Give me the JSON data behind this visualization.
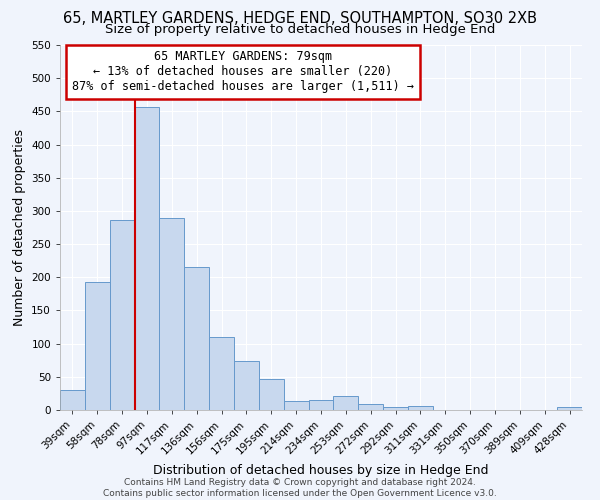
{
  "title": "65, MARTLEY GARDENS, HEDGE END, SOUTHAMPTON, SO30 2XB",
  "subtitle": "Size of property relative to detached houses in Hedge End",
  "xlabel": "Distribution of detached houses by size in Hedge End",
  "ylabel": "Number of detached properties",
  "categories": [
    "39sqm",
    "58sqm",
    "78sqm",
    "97sqm",
    "117sqm",
    "136sqm",
    "156sqm",
    "175sqm",
    "195sqm",
    "214sqm",
    "234sqm",
    "253sqm",
    "272sqm",
    "292sqm",
    "311sqm",
    "331sqm",
    "350sqm",
    "370sqm",
    "389sqm",
    "409sqm",
    "428sqm"
  ],
  "values": [
    30,
    193,
    287,
    457,
    290,
    215,
    110,
    74,
    46,
    14,
    15,
    21,
    9,
    5,
    6,
    0,
    0,
    0,
    0,
    0,
    5
  ],
  "bar_color": "#c8d8ee",
  "bar_edge_color": "#6699cc",
  "vline_x_index": 2,
  "vline_color": "#cc0000",
  "annotation_text": "65 MARTLEY GARDENS: 79sqm\n← 13% of detached houses are smaller (220)\n87% of semi-detached houses are larger (1,511) →",
  "annotation_box_color": "#ffffff",
  "annotation_box_edge_color": "#cc0000",
  "ylim": [
    0,
    550
  ],
  "yticks": [
    0,
    50,
    100,
    150,
    200,
    250,
    300,
    350,
    400,
    450,
    500,
    550
  ],
  "footer": "Contains HM Land Registry data © Crown copyright and database right 2024.\nContains public sector information licensed under the Open Government Licence v3.0.",
  "bg_color": "#f0f4fc",
  "grid_color": "#ffffff",
  "title_fontsize": 10.5,
  "subtitle_fontsize": 9.5,
  "axis_label_fontsize": 9,
  "tick_fontsize": 7.5,
  "annotation_fontsize": 8.5,
  "footer_fontsize": 6.5
}
